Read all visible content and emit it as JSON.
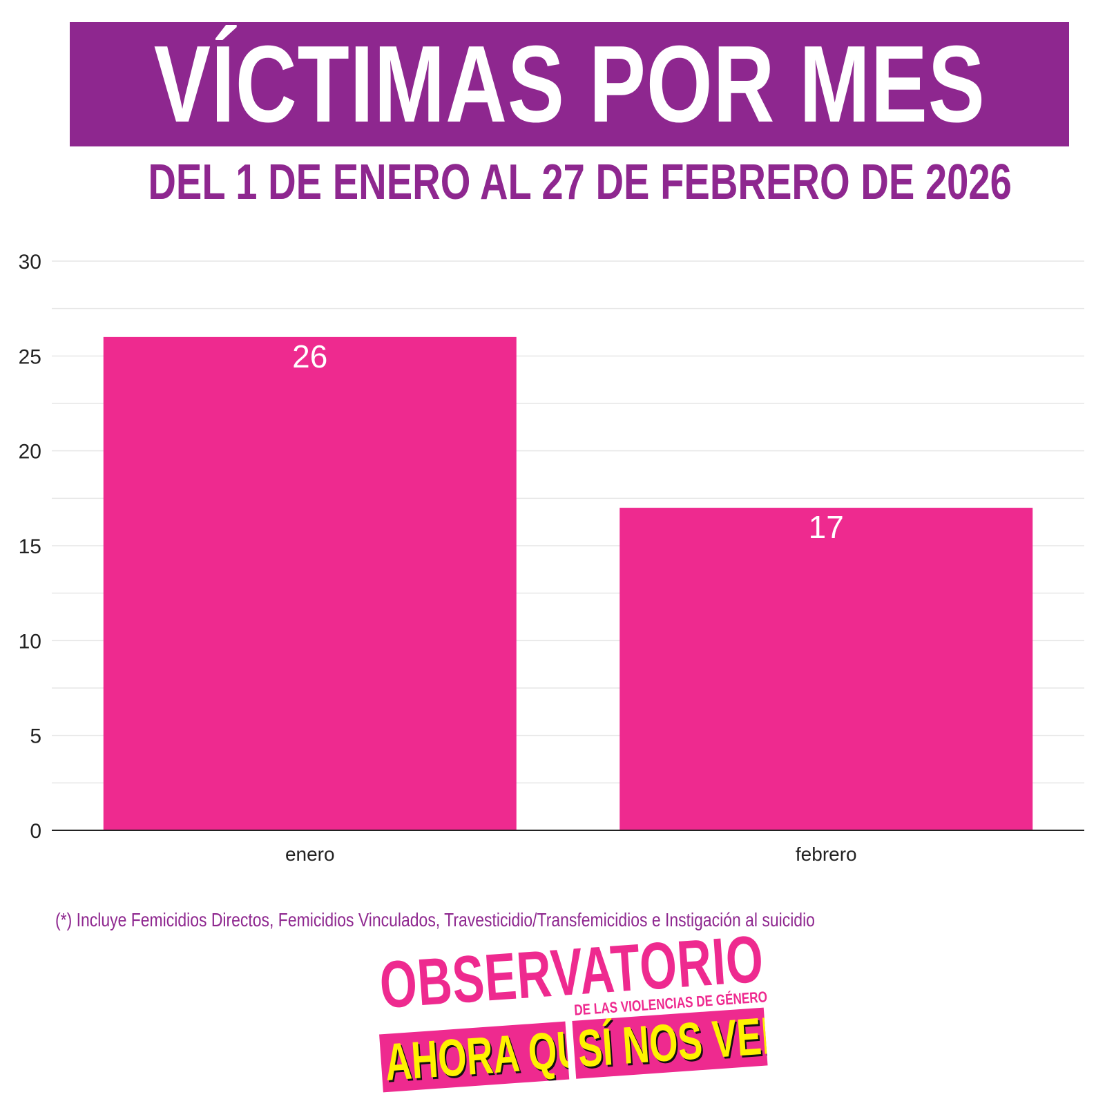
{
  "header": {
    "title": "VÍCTIMAS POR MES",
    "subtitle": "DEL 1 DE ENERO AL 27 DE FEBRERO DE 2026"
  },
  "colors": {
    "banner": "#8e278f",
    "bar": "#ee2a8f",
    "logo_yellow": "#fff200"
  },
  "chart_data": {
    "type": "bar",
    "categories": [
      "enero",
      "febrero"
    ],
    "values": [
      26,
      17
    ],
    "data_labels": [
      "26",
      "17"
    ],
    "ylim": [
      0,
      30
    ],
    "yticks": [
      0,
      5,
      10,
      15,
      20,
      25,
      30
    ],
    "xlabel": "",
    "ylabel": "",
    "grid": true,
    "legend": "none"
  },
  "footnote": "(*) Incluye Femicidios Directos, Femicidios Vinculados,  Travesticidio/Transfemicidios e Instigación al suicidio",
  "logo": {
    "main": "OBSERVATORIO",
    "sub": "DE LAS VIOLENCIAS DE GÉNERO",
    "left": "AHORA QUE",
    "right": "SÍ NOS VEN"
  }
}
